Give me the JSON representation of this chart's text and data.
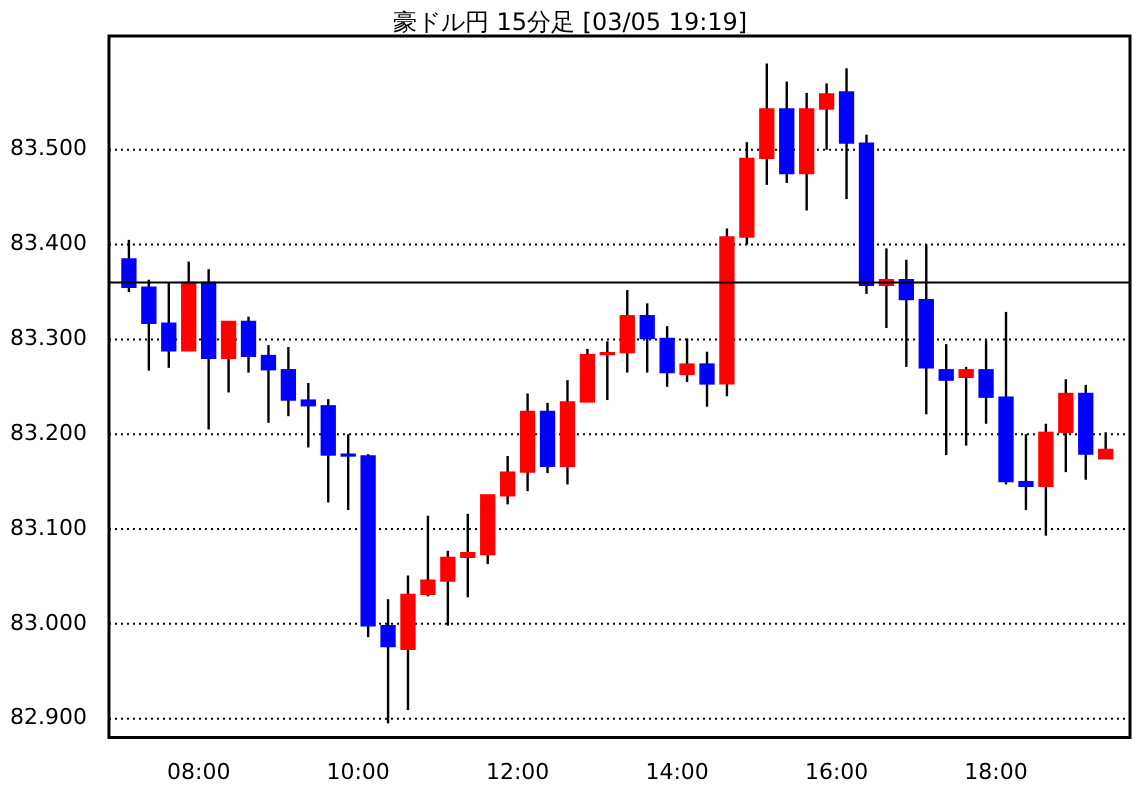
{
  "chart_data": {
    "type": "candlestick",
    "title": "豪ドル円 15分足 [03/05 19:19]",
    "x": [
      7.125,
      7.375,
      7.625,
      7.875,
      8.125,
      8.375,
      8.625,
      8.875,
      9.125,
      9.375,
      9.625,
      9.875,
      10.125,
      10.375,
      10.625,
      10.875,
      11.125,
      11.375,
      11.625,
      11.875,
      12.125,
      12.375,
      12.625,
      12.875,
      13.125,
      13.375,
      13.625,
      13.875,
      14.125,
      14.375,
      14.625,
      14.875,
      15.125,
      15.375,
      15.625,
      15.875,
      16.125,
      16.375,
      16.625,
      16.875,
      17.125,
      17.375,
      17.625,
      17.875,
      18.125,
      18.375,
      18.625,
      18.875,
      19.125,
      19.375
    ],
    "ohlc": [
      [
        83.385,
        83.405,
        83.35,
        83.355
      ],
      [
        83.355,
        83.363,
        83.267,
        83.317
      ],
      [
        83.317,
        83.36,
        83.27,
        83.288
      ],
      [
        83.288,
        83.382,
        83.288,
        83.36
      ],
      [
        83.36,
        83.374,
        83.205,
        83.28
      ],
      [
        83.28,
        83.319,
        83.244,
        83.319
      ],
      [
        83.319,
        83.324,
        83.265,
        83.282
      ],
      [
        83.283,
        83.294,
        83.212,
        83.268
      ],
      [
        83.268,
        83.292,
        83.219,
        83.236
      ],
      [
        83.236,
        83.254,
        83.186,
        83.23
      ],
      [
        83.23,
        83.237,
        83.128,
        83.178
      ],
      [
        83.179,
        83.2,
        83.12,
        83.177
      ],
      [
        83.177,
        83.179,
        82.986,
        82.998
      ],
      [
        82.998,
        83.026,
        82.895,
        82.976
      ],
      [
        82.973,
        83.051,
        82.909,
        83.031
      ],
      [
        83.031,
        83.114,
        83.029,
        83.046
      ],
      [
        83.045,
        83.077,
        82.998,
        83.07
      ],
      [
        83.07,
        83.116,
        83.028,
        83.075
      ],
      [
        83.073,
        83.136,
        83.063,
        83.136
      ],
      [
        83.135,
        83.177,
        83.126,
        83.16
      ],
      [
        83.16,
        83.243,
        83.14,
        83.224
      ],
      [
        83.224,
        83.233,
        83.159,
        83.166
      ],
      [
        83.166,
        83.257,
        83.147,
        83.234
      ],
      [
        83.234,
        83.29,
        83.234,
        83.284
      ],
      [
        83.284,
        83.298,
        83.236,
        83.286
      ],
      [
        83.286,
        83.352,
        83.265,
        83.325
      ],
      [
        83.325,
        83.338,
        83.265,
        83.301
      ],
      [
        83.301,
        83.314,
        83.25,
        83.265
      ],
      [
        83.263,
        83.301,
        83.255,
        83.274
      ],
      [
        83.274,
        83.287,
        83.229,
        83.253
      ],
      [
        83.253,
        83.417,
        83.24,
        83.408
      ],
      [
        83.408,
        83.508,
        83.4,
        83.491
      ],
      [
        83.491,
        83.591,
        83.463,
        83.543
      ],
      [
        83.543,
        83.572,
        83.465,
        83.475
      ],
      [
        83.475,
        83.56,
        83.436,
        83.543
      ],
      [
        83.543,
        83.57,
        83.5,
        83.559
      ],
      [
        83.561,
        83.586,
        83.448,
        83.507
      ],
      [
        83.507,
        83.516,
        83.348,
        83.357
      ],
      [
        83.357,
        83.396,
        83.312,
        83.363
      ],
      [
        83.363,
        83.384,
        83.271,
        83.342
      ],
      [
        83.342,
        83.4,
        83.221,
        83.27
      ],
      [
        83.268,
        83.295,
        83.178,
        83.257
      ],
      [
        83.26,
        83.271,
        83.188,
        83.268
      ],
      [
        83.268,
        83.299,
        83.211,
        83.239
      ],
      [
        83.239,
        83.329,
        83.147,
        83.15
      ],
      [
        83.15,
        83.2,
        83.12,
        83.145
      ],
      [
        83.145,
        83.211,
        83.093,
        83.202
      ],
      [
        83.202,
        83.258,
        83.16,
        83.243
      ],
      [
        83.243,
        83.252,
        83.152,
        83.179
      ],
      [
        83.174,
        83.202,
        83.174,
        83.184
      ]
    ],
    "colors": [
      "#0000ff",
      "#0000ff",
      "#0000ff",
      "#ff0000",
      "#0000ff",
      "#ff0000",
      "#0000ff",
      "#0000ff",
      "#0000ff",
      "#0000ff",
      "#0000ff",
      "#0000ff",
      "#0000ff",
      "#0000ff",
      "#ff0000",
      "#ff0000",
      "#ff0000",
      "#ff0000",
      "#ff0000",
      "#ff0000",
      "#ff0000",
      "#0000ff",
      "#ff0000",
      "#ff0000",
      "#ff0000",
      "#ff0000",
      "#0000ff",
      "#0000ff",
      "#ff0000",
      "#0000ff",
      "#ff0000",
      "#ff0000",
      "#ff0000",
      "#0000ff",
      "#ff0000",
      "#ff0000",
      "#0000ff",
      "#0000ff",
      "#ff0000",
      "#0000ff",
      "#0000ff",
      "#0000ff",
      "#ff0000",
      "#0000ff",
      "#0000ff",
      "#0000ff",
      "#ff0000",
      "#ff0000",
      "#0000ff",
      "#ff0000"
    ],
    "xlim": [
      6.875,
      19.68
    ],
    "xticks": [
      {
        "value": 8,
        "label": "08:00"
      },
      {
        "value": 10,
        "label": "10:00"
      },
      {
        "value": 12,
        "label": "12:00"
      },
      {
        "value": 14,
        "label": "14:00"
      },
      {
        "value": 16,
        "label": "16:00"
      },
      {
        "value": 18,
        "label": "18:00"
      }
    ],
    "ylim": [
      82.88,
      83.62
    ],
    "yticks": [
      {
        "value": 82.9,
        "label": "82.900"
      },
      {
        "value": 83,
        "label": "83.000"
      },
      {
        "value": 83.1,
        "label": "83.100"
      },
      {
        "value": 83.2,
        "label": "83.200"
      },
      {
        "value": 83.3,
        "label": "83.300"
      },
      {
        "value": 83.4,
        "label": "83.400"
      },
      {
        "value": 83.5,
        "label": "83.500"
      }
    ],
    "grid": "y",
    "ref_lines": [
      {
        "axis": "y",
        "value": 83.36,
        "color": "#000000"
      }
    ]
  }
}
